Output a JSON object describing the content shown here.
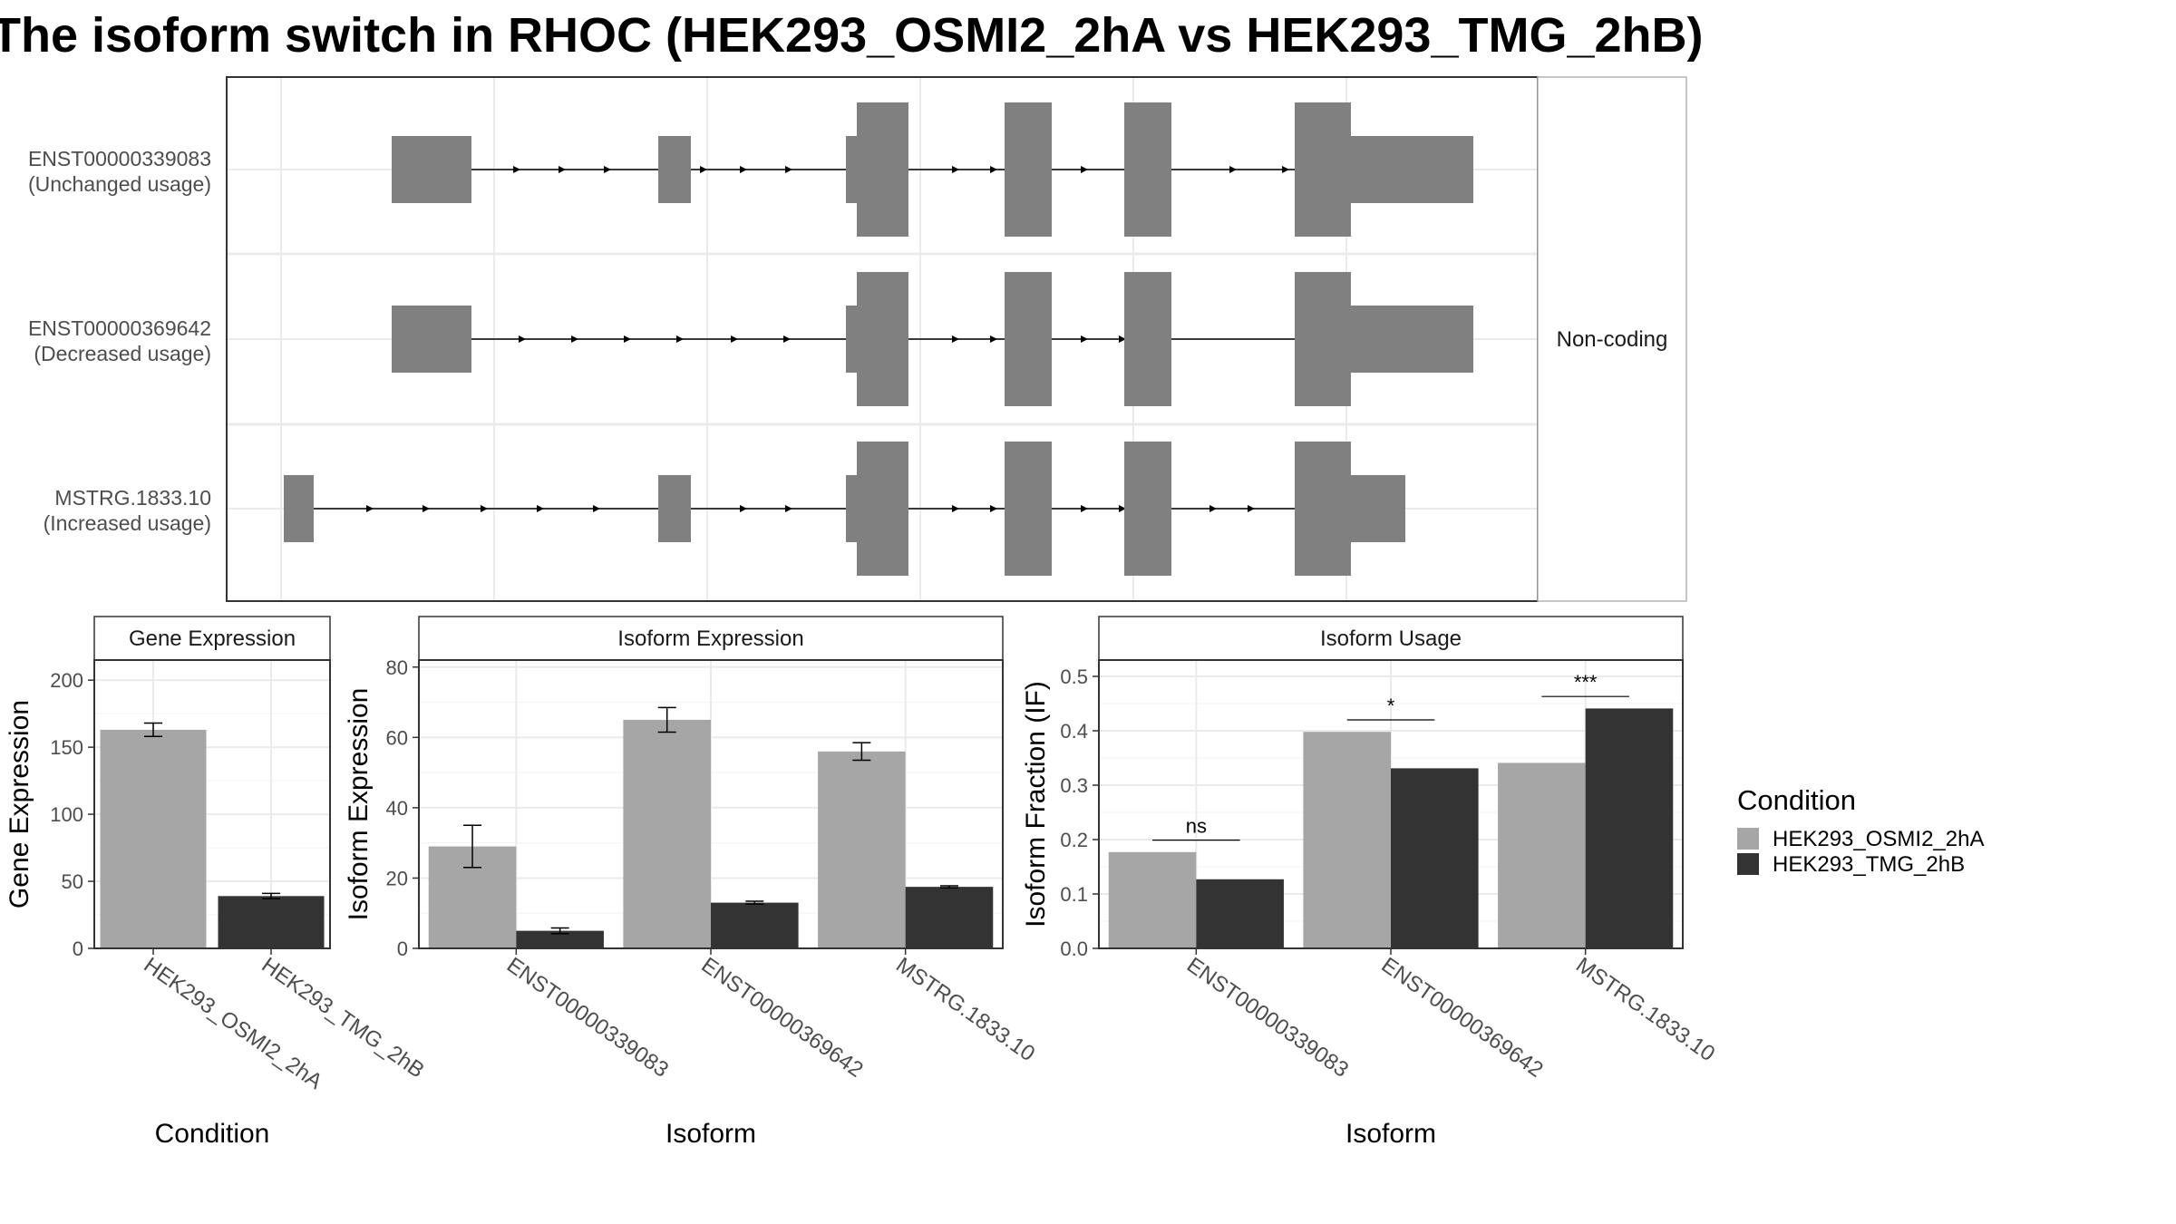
{
  "title": "The isoform switch in RHOC (HEK293_OSMI2_2hA vs HEK293_TMG_2hB)",
  "colors": {
    "cond_a": "#a6a6a6",
    "cond_b": "#333333",
    "exon": "#808080",
    "grid": "#ebebeb",
    "strip": "#ffffff"
  },
  "chart_data": [
    {
      "type": "gene-structure",
      "facet_label": "Non-coding",
      "isoforms": [
        {
          "id": "ENST00000339083",
          "usage": "(Unchanged usage)"
        },
        {
          "id": "ENST00000369642",
          "usage": "(Decreased usage)"
        },
        {
          "id": "MSTRG.1833.10",
          "usage": "(Increased usage)"
        }
      ]
    },
    {
      "type": "bar",
      "strip": "Gene Expression",
      "xlabel": "Condition",
      "ylabel": "Gene Expression",
      "ylim": [
        0,
        215
      ],
      "yticks": [
        0,
        50,
        100,
        150,
        200
      ],
      "categories": [
        "HEK293_OSMI2_2hA",
        "HEK293_TMG_2hB"
      ],
      "values": [
        163,
        39
      ],
      "errors": [
        5,
        2
      ]
    },
    {
      "type": "bar",
      "strip": "Isoform Expression",
      "xlabel": "Isoform",
      "ylabel": "Isoform Expression",
      "ylim": [
        0,
        82
      ],
      "yticks": [
        0,
        20,
        40,
        60,
        80
      ],
      "categories": [
        "ENST00000339083",
        "ENST00000369642",
        "MSTRG.1833.10"
      ],
      "series": [
        {
          "name": "HEK293_OSMI2_2hA",
          "values": [
            29,
            65,
            56
          ],
          "errors": [
            6,
            3.5,
            2.5
          ]
        },
        {
          "name": "HEK293_TMG_2hB",
          "values": [
            5,
            13,
            17.5
          ],
          "errors": [
            0.8,
            0.4,
            0.3
          ]
        }
      ]
    },
    {
      "type": "bar",
      "strip": "Isoform Usage",
      "xlabel": "Isoform",
      "ylabel": "Isoform Fraction (IF)",
      "ylim": [
        0,
        0.53
      ],
      "yticks": [
        "0.0",
        "0.1",
        "0.2",
        "0.3",
        "0.4",
        "0.5"
      ],
      "categories": [
        "ENST00000339083",
        "ENST00000369642",
        "MSTRG.1833.10"
      ],
      "series": [
        {
          "name": "HEK293_OSMI2_2hA",
          "values": [
            0.177,
            0.398,
            0.341
          ]
        },
        {
          "name": "HEK293_TMG_2hB",
          "values": [
            0.127,
            0.331,
            0.441
          ]
        }
      ],
      "significance": [
        "ns",
        "*",
        "***"
      ]
    }
  ],
  "legend": {
    "title": "Condition",
    "items": [
      "HEK293_OSMI2_2hA",
      "HEK293_TMG_2hB"
    ]
  }
}
